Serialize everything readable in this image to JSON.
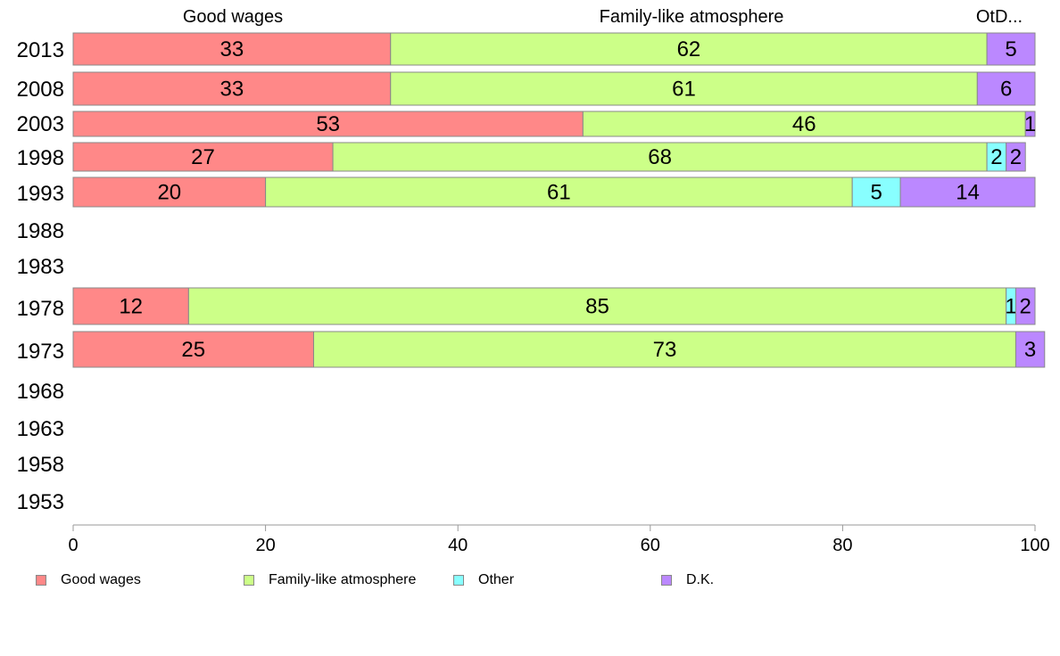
{
  "chart_data": {
    "type": "bar",
    "orientation": "horizontal",
    "stacked": true,
    "categories": [
      "2013",
      "2008",
      "2003",
      "1998",
      "1993",
      "1988",
      "1983",
      "1978",
      "1973",
      "1968",
      "1963",
      "1958",
      "1953"
    ],
    "series": [
      {
        "name": "Good wages",
        "color": "#ff8888",
        "values": [
          33,
          33,
          53,
          27,
          20,
          null,
          null,
          12,
          25,
          null,
          null,
          null,
          null
        ]
      },
      {
        "name": "Family-like atmosphere",
        "color": "#ccff88",
        "values": [
          62,
          61,
          46,
          68,
          61,
          null,
          null,
          85,
          73,
          null,
          null,
          null,
          null
        ]
      },
      {
        "name": "Other",
        "color": "#88ffff",
        "values": [
          0,
          0,
          0,
          2,
          5,
          null,
          null,
          1,
          0,
          null,
          null,
          null,
          null
        ]
      },
      {
        "name": "D.K.",
        "color": "#bb88ff",
        "values": [
          5,
          6,
          1,
          2,
          14,
          null,
          null,
          2,
          3,
          null,
          null,
          null,
          null
        ]
      }
    ],
    "top_labels": [
      "Good wages",
      "Family-like atmosphere",
      "OtD..."
    ],
    "xlim": [
      0,
      100
    ],
    "xticks": [
      "0",
      "20",
      "40",
      "60",
      "80",
      "100"
    ],
    "legend_position": "bottom",
    "grid": false
  }
}
